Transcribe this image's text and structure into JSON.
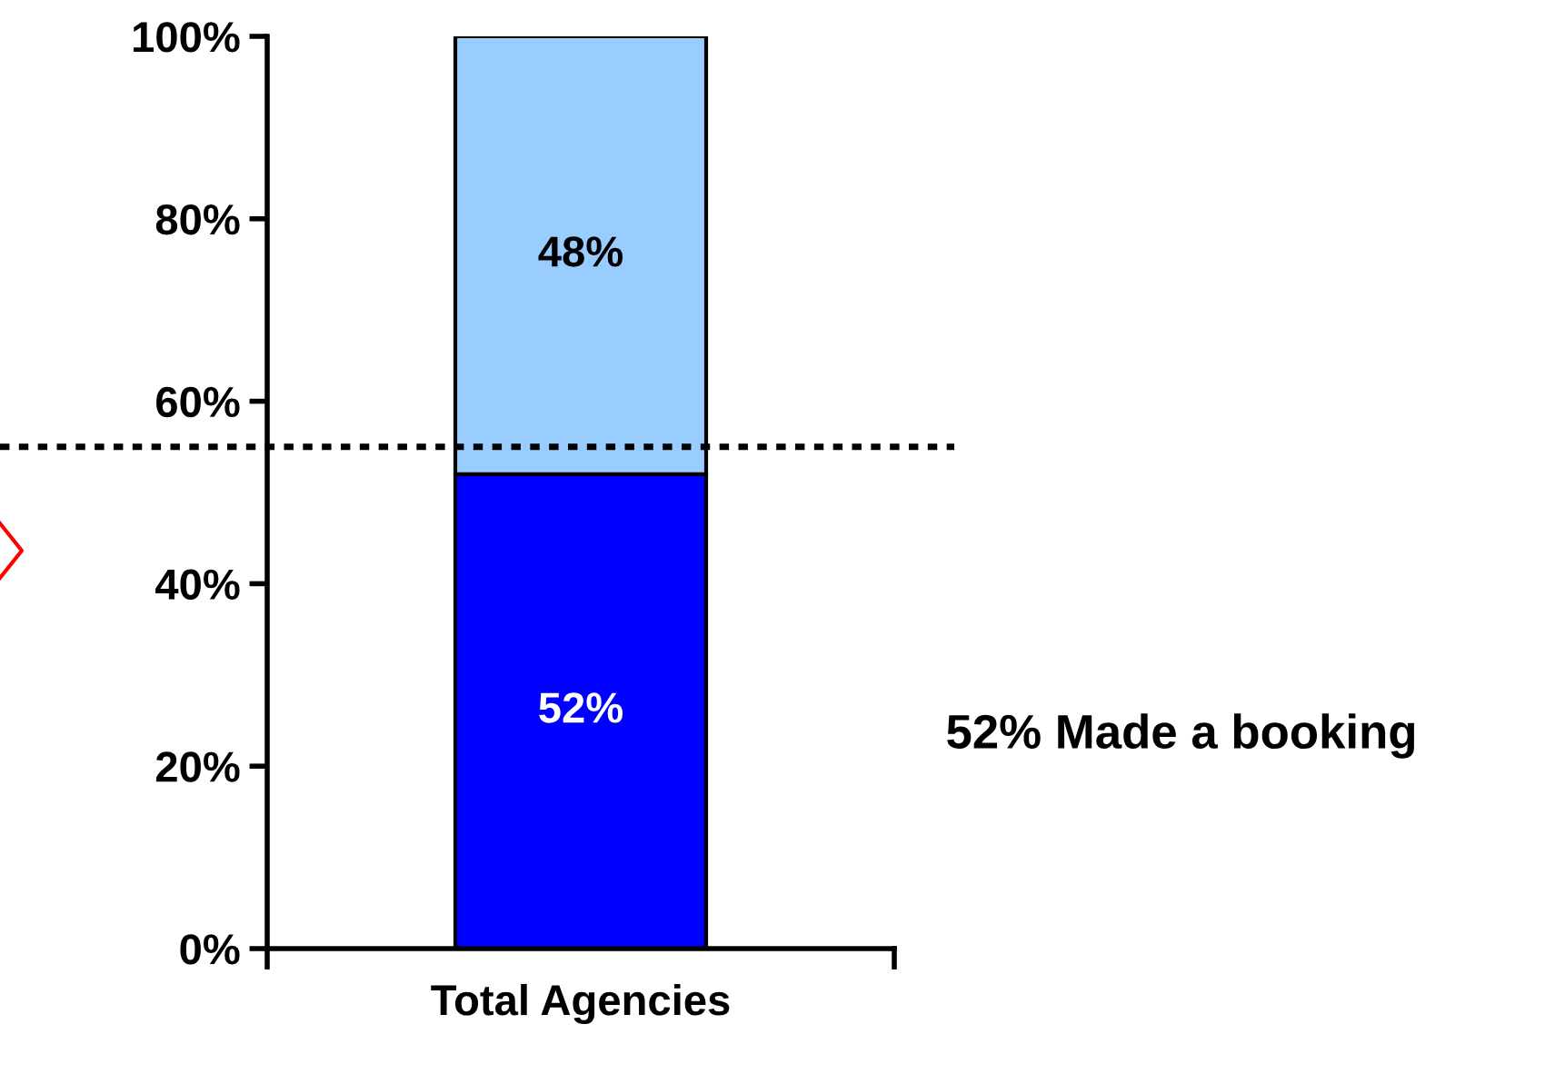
{
  "chart_data": {
    "type": "bar",
    "stacked": true,
    "categories": [
      "Total Agencies"
    ],
    "series": [
      {
        "color": "#0000ff",
        "values": [
          52
        ],
        "value_labels": [
          "52%"
        ]
      },
      {
        "color": "#99ccff",
        "values": [
          48
        ],
        "value_labels": [
          "48%"
        ]
      }
    ],
    "ylim": [
      0,
      100
    ],
    "yticks": [
      {
        "value": 0,
        "label": "0%"
      },
      {
        "value": 20,
        "label": "20%"
      },
      {
        "value": 40,
        "label": "40%"
      },
      {
        "value": 60,
        "label": "60%"
      },
      {
        "value": 80,
        "label": "80%"
      },
      {
        "value": 100,
        "label": "100%"
      }
    ],
    "ref_lines": [
      {
        "axis": "y",
        "value": 55,
        "color": "#000000",
        "line_style": "dotted"
      }
    ],
    "annotations": [
      {
        "text": "52% Made a booking"
      }
    ],
    "grid": false,
    "legend": false
  }
}
